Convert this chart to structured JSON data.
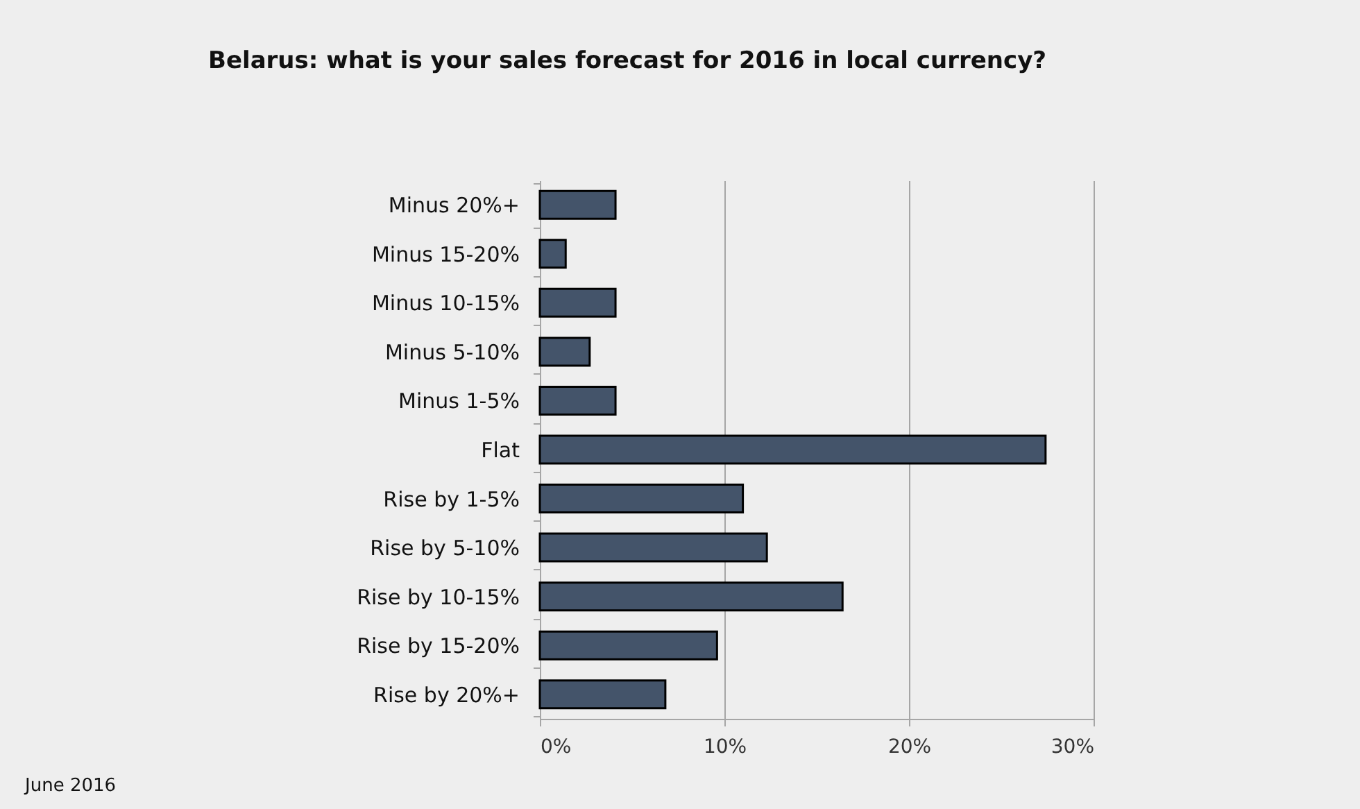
{
  "chart_data": {
    "type": "bar",
    "orientation": "horizontal",
    "title": "Belarus: what is your sales forecast for 2016 in local currency?",
    "categories": [
      "Minus 20%+",
      "Minus 15-20%",
      "Minus 10-15%",
      "Minus 5-10%",
      "Minus 1-5%",
      "Flat",
      "Rise by 1-5%",
      "Rise by 5-10%",
      "Rise by 10-15%",
      "Rise by 15-20%",
      "Rise by 20%+"
    ],
    "values": [
      4.1,
      1.4,
      4.1,
      2.7,
      4.1,
      27.4,
      11.0,
      12.3,
      16.4,
      9.6,
      6.8
    ],
    "color": "#44546a",
    "xlim": [
      0,
      30
    ],
    "xticks": [
      {
        "value": 0,
        "label": "0%"
      },
      {
        "value": 10,
        "label": "10%"
      },
      {
        "value": 20,
        "label": "20%"
      },
      {
        "value": 30,
        "label": "30%"
      }
    ],
    "grid": "x",
    "annotations": [
      "June 2016"
    ]
  }
}
